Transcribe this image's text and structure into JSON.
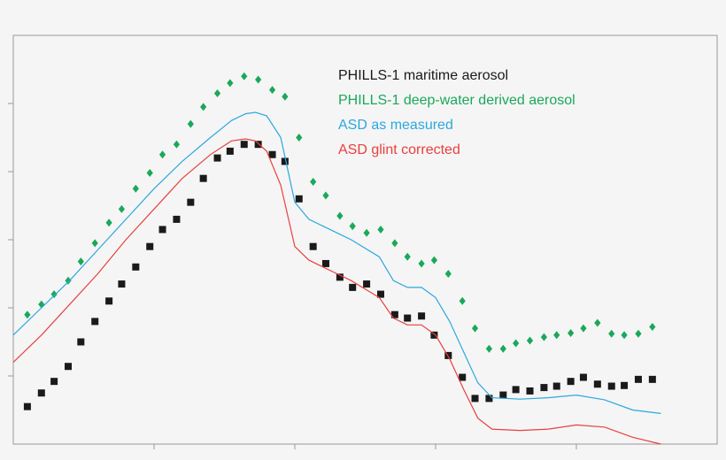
{
  "chart_data": {
    "type": "line",
    "title": "",
    "xlabel": "",
    "ylabel": "",
    "xlim": [
      0,
      5
    ],
    "ylim": [
      0,
      6
    ],
    "grid": false,
    "legend_placement": "top-right",
    "series": [
      {
        "name": "PHILLS-1 maritime aerosol",
        "color": "#1a1a1a",
        "marker": "square",
        "x": [
          0.1,
          0.2,
          0.29,
          0.39,
          0.48,
          0.58,
          0.68,
          0.77,
          0.87,
          0.97,
          1.06,
          1.16,
          1.26,
          1.35,
          1.45,
          1.54,
          1.64,
          1.74,
          1.84,
          1.93,
          2.03,
          2.13,
          2.22,
          2.32,
          2.41,
          2.51,
          2.61,
          2.71,
          2.8,
          2.9,
          2.99,
          3.09,
          3.19,
          3.28,
          3.38,
          3.48,
          3.57,
          3.67,
          3.77,
          3.86,
          3.96,
          4.05,
          4.15,
          4.25,
          4.34,
          4.44,
          4.54
        ],
        "y": [
          0.55,
          0.75,
          0.92,
          1.14,
          1.5,
          1.8,
          2.1,
          2.35,
          2.6,
          2.9,
          3.15,
          3.3,
          3.55,
          3.9,
          4.2,
          4.3,
          4.4,
          4.4,
          4.25,
          4.15,
          3.6,
          2.9,
          2.65,
          2.45,
          2.3,
          2.35,
          2.2,
          1.9,
          1.85,
          1.88,
          1.6,
          1.3,
          0.98,
          0.67,
          0.67,
          0.72,
          0.8,
          0.78,
          0.83,
          0.85,
          0.92,
          0.98,
          0.88,
          0.85,
          0.86,
          0.95,
          0.95
        ]
      },
      {
        "name": "PHILLS-1 deep-water derived aerosol",
        "color": "#1aa85a",
        "marker": "diamond",
        "x": [
          0.1,
          0.2,
          0.29,
          0.39,
          0.48,
          0.58,
          0.68,
          0.77,
          0.87,
          0.97,
          1.06,
          1.16,
          1.26,
          1.35,
          1.45,
          1.54,
          1.64,
          1.74,
          1.84,
          1.93,
          2.03,
          2.13,
          2.22,
          2.32,
          2.41,
          2.51,
          2.61,
          2.71,
          2.8,
          2.9,
          2.99,
          3.09,
          3.19,
          3.28,
          3.38,
          3.48,
          3.57,
          3.67,
          3.77,
          3.86,
          3.96,
          4.05,
          4.15,
          4.25,
          4.34,
          4.44,
          4.54
        ],
        "y": [
          1.9,
          2.05,
          2.2,
          2.4,
          2.68,
          2.95,
          3.25,
          3.45,
          3.75,
          3.98,
          4.25,
          4.4,
          4.7,
          4.95,
          5.15,
          5.3,
          5.4,
          5.35,
          5.2,
          5.1,
          4.5,
          3.85,
          3.65,
          3.35,
          3.2,
          3.1,
          3.15,
          2.95,
          2.75,
          2.65,
          2.7,
          2.5,
          2.1,
          1.7,
          1.4,
          1.4,
          1.48,
          1.52,
          1.57,
          1.6,
          1.63,
          1.7,
          1.78,
          1.62,
          1.6,
          1.62,
          1.72
        ]
      },
      {
        "name": "ASD as measured",
        "color": "#2ba8df",
        "marker": "line",
        "x": [
          0,
          0.2,
          0.4,
          0.6,
          0.8,
          1.0,
          1.2,
          1.4,
          1.55,
          1.65,
          1.72,
          1.8,
          1.9,
          2.0,
          2.1,
          2.2,
          2.4,
          2.6,
          2.7,
          2.8,
          2.9,
          3.0,
          3.1,
          3.2,
          3.3,
          3.4,
          3.6,
          3.8,
          4.0,
          4.2,
          4.4,
          4.6
        ],
        "y": [
          1.6,
          2.0,
          2.4,
          2.85,
          3.3,
          3.75,
          4.15,
          4.5,
          4.75,
          4.85,
          4.87,
          4.82,
          4.5,
          3.55,
          3.3,
          3.2,
          3.0,
          2.75,
          2.4,
          2.3,
          2.3,
          2.15,
          1.8,
          1.35,
          0.9,
          0.68,
          0.66,
          0.68,
          0.72,
          0.65,
          0.5,
          0.45
        ]
      },
      {
        "name": "ASD glint corrected",
        "color": "#e8403f",
        "marker": "line",
        "x": [
          0,
          0.2,
          0.4,
          0.6,
          0.8,
          1.0,
          1.2,
          1.4,
          1.55,
          1.65,
          1.72,
          1.8,
          1.9,
          2.0,
          2.1,
          2.2,
          2.4,
          2.6,
          2.7,
          2.8,
          2.9,
          3.0,
          3.1,
          3.2,
          3.3,
          3.4,
          3.6,
          3.8,
          4.0,
          4.2,
          4.4,
          4.6
        ],
        "y": [
          1.2,
          1.6,
          2.05,
          2.5,
          3.0,
          3.45,
          3.9,
          4.25,
          4.45,
          4.48,
          4.45,
          4.3,
          3.8,
          2.9,
          2.7,
          2.6,
          2.4,
          2.15,
          1.85,
          1.75,
          1.75,
          1.6,
          1.25,
          0.8,
          0.38,
          0.22,
          0.2,
          0.22,
          0.28,
          0.25,
          0.1,
          0.0
        ]
      }
    ]
  }
}
